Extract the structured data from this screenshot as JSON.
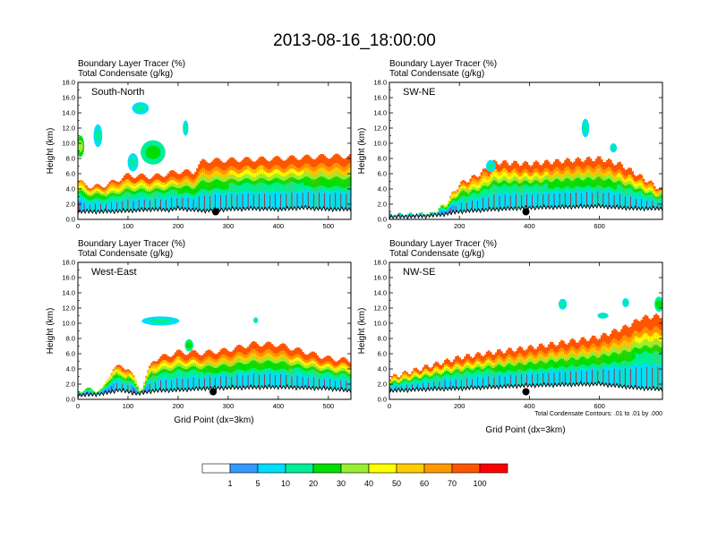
{
  "chart_data": {
    "type": "heatmap",
    "title": "2013-08-16_18:00:00",
    "subtitles": [
      "Boundary Layer Tracer   (%)",
      "Total Condensate   (g/kg)"
    ],
    "ylabel": "Height (km)",
    "xlabel": "Grid Point (dx=3km)",
    "contour_note": "Total Condensate Contours: .01 to .01 by .000",
    "y_ticks": [
      "0.0",
      "2.0",
      "4.0",
      "6.0",
      "8.0",
      "10.0",
      "12.0",
      "14.0",
      "16.0",
      "18.0"
    ],
    "ylim": [
      0,
      18
    ],
    "legend": {
      "labels": [
        "1",
        "5",
        "10",
        "20",
        "30",
        "40",
        "50",
        "60",
        "70",
        "100"
      ],
      "colors": [
        "#ffffff",
        "#3399ff",
        "#00ddff",
        "#00ee99",
        "#00dd00",
        "#99ee33",
        "#ffff00",
        "#ffcc00",
        "#ff9900",
        "#ff5500",
        "#ff0000"
      ]
    },
    "panels": [
      {
        "label": "South-North",
        "xlim": [
          0,
          545
        ],
        "x_ticks": [
          "0",
          "100",
          "200",
          "300",
          "400",
          "500"
        ],
        "x_tick_values": [
          0,
          100,
          200,
          300,
          400,
          500
        ],
        "marker_x": 275,
        "marker_y": 1.0,
        "terrain": [
          [
            0,
            1.0
          ],
          [
            50,
            1.0
          ],
          [
            100,
            1.1
          ],
          [
            150,
            1.3
          ],
          [
            180,
            1.2
          ],
          [
            200,
            1.4
          ],
          [
            250,
            1.1
          ],
          [
            300,
            1.3
          ],
          [
            350,
            1.4
          ],
          [
            400,
            1.3
          ],
          [
            450,
            1.5
          ],
          [
            500,
            1.3
          ],
          [
            545,
            1.3
          ]
        ],
        "top": [
          [
            0,
            5.0
          ],
          [
            30,
            4.2
          ],
          [
            60,
            4.6
          ],
          [
            100,
            5.8
          ],
          [
            150,
            5.6
          ],
          [
            200,
            6.3
          ],
          [
            230,
            6.2
          ],
          [
            250,
            7.7
          ],
          [
            300,
            7.8
          ],
          [
            400,
            8.0
          ],
          [
            500,
            8.3
          ],
          [
            545,
            8.3
          ]
        ],
        "base_pct": [
          [
            0,
            70
          ],
          [
            50,
            78
          ],
          [
            100,
            90
          ],
          [
            150,
            88
          ],
          [
            200,
            100
          ],
          [
            300,
            100
          ],
          [
            350,
            92
          ],
          [
            450,
            100
          ],
          [
            545,
            100
          ]
        ],
        "clouds": [
          {
            "x": 5,
            "y": 9.6,
            "rx": 5,
            "ry": 1.4,
            "v": 20
          },
          {
            "x": 40,
            "y": 11.0,
            "rx": 6,
            "ry": 1.5,
            "v": 5
          },
          {
            "x": 125,
            "y": 14.6,
            "rx": 14,
            "ry": 0.8,
            "v": 5
          },
          {
            "x": 150,
            "y": 8.8,
            "rx": 22,
            "ry": 1.6,
            "v": 10
          },
          {
            "x": 110,
            "y": 7.5,
            "rx": 8,
            "ry": 1.2,
            "v": 5
          },
          {
            "x": 215,
            "y": 12.0,
            "rx": 3,
            "ry": 1.0,
            "v": 5
          }
        ]
      },
      {
        "label": "SW-NE",
        "xlim": [
          0,
          780
        ],
        "x_ticks": [
          "0",
          "200",
          "400",
          "600"
        ],
        "x_tick_values": [
          0,
          200,
          400,
          600
        ],
        "marker_x": 390,
        "marker_y": 1.0,
        "terrain": [
          [
            0,
            0.3
          ],
          [
            100,
            0.4
          ],
          [
            150,
            0.6
          ],
          [
            200,
            1.0
          ],
          [
            300,
            1.3
          ],
          [
            400,
            1.5
          ],
          [
            500,
            1.6
          ],
          [
            600,
            1.7
          ],
          [
            700,
            1.4
          ],
          [
            780,
            1.4
          ]
        ],
        "top": [
          [
            0,
            0.5
          ],
          [
            120,
            0.6
          ],
          [
            160,
            2.0
          ],
          [
            200,
            4.6
          ],
          [
            260,
            6.0
          ],
          [
            300,
            7.5
          ],
          [
            400,
            7.3
          ],
          [
            500,
            7.7
          ],
          [
            600,
            8.0
          ],
          [
            660,
            7.2
          ],
          [
            700,
            6.1
          ],
          [
            780,
            3.8
          ]
        ],
        "base_pct": [
          [
            0,
            20
          ],
          [
            140,
            30
          ],
          [
            180,
            70
          ],
          [
            250,
            85
          ],
          [
            330,
            92
          ],
          [
            450,
            100
          ],
          [
            650,
            100
          ],
          [
            700,
            90
          ],
          [
            780,
            78
          ]
        ],
        "clouds": [
          {
            "x": 560,
            "y": 12.0,
            "rx": 7,
            "ry": 1.2,
            "v": 5
          },
          {
            "x": 290,
            "y": 7.0,
            "rx": 10,
            "ry": 0.8,
            "v": 5
          },
          {
            "x": 640,
            "y": 9.4,
            "rx": 6,
            "ry": 0.6,
            "v": 5
          }
        ]
      },
      {
        "label": "West-East",
        "xlim": [
          0,
          545
        ],
        "x_ticks": [
          "0",
          "100",
          "200",
          "300",
          "400",
          "500"
        ],
        "x_tick_values": [
          0,
          100,
          200,
          300,
          400,
          500
        ],
        "marker_x": 270,
        "marker_y": 1.0,
        "terrain": [
          [
            0,
            0.5
          ],
          [
            50,
            0.7
          ],
          [
            80,
            1.2
          ],
          [
            100,
            1.0
          ],
          [
            120,
            0.7
          ],
          [
            150,
            1.1
          ],
          [
            200,
            1.2
          ],
          [
            250,
            1.4
          ],
          [
            300,
            1.5
          ],
          [
            400,
            1.6
          ],
          [
            500,
            1.4
          ],
          [
            545,
            1.1
          ]
        ],
        "top": [
          [
            0,
            1.2
          ],
          [
            50,
            1.3
          ],
          [
            70,
            4.2
          ],
          [
            100,
            4.2
          ],
          [
            125,
            1.0
          ],
          [
            150,
            5.2
          ],
          [
            200,
            6.2
          ],
          [
            250,
            6.1
          ],
          [
            300,
            6.5
          ],
          [
            350,
            7.3
          ],
          [
            400,
            7.2
          ],
          [
            450,
            6.3
          ],
          [
            500,
            5.4
          ],
          [
            545,
            5.1
          ]
        ],
        "base_pct": [
          [
            0,
            25
          ],
          [
            60,
            55
          ],
          [
            90,
            90
          ],
          [
            120,
            55
          ],
          [
            160,
            88
          ],
          [
            250,
            100
          ],
          [
            420,
            100
          ],
          [
            545,
            92
          ]
        ],
        "clouds": [
          {
            "x": 165,
            "y": 10.3,
            "rx": 35,
            "ry": 0.6,
            "v": 5
          },
          {
            "x": 355,
            "y": 10.4,
            "rx": 2,
            "ry": 0.4,
            "v": 5
          },
          {
            "x": 222,
            "y": 7.1,
            "rx": 6,
            "ry": 0.8,
            "v": 10
          }
        ]
      },
      {
        "label": "NW-SE",
        "xlim": [
          0,
          780
        ],
        "x_ticks": [
          "0",
          "200",
          "400",
          "600"
        ],
        "x_tick_values": [
          0,
          200,
          400,
          600
        ],
        "marker_x": 390,
        "marker_y": 1.0,
        "terrain": [
          [
            0,
            1.1
          ],
          [
            100,
            1.3
          ],
          [
            200,
            1.4
          ],
          [
            300,
            1.6
          ],
          [
            400,
            1.8
          ],
          [
            500,
            1.9
          ],
          [
            600,
            2.0
          ],
          [
            700,
            1.5
          ],
          [
            780,
            1.3
          ]
        ],
        "top": [
          [
            0,
            2.8
          ],
          [
            100,
            4.2
          ],
          [
            200,
            5.5
          ],
          [
            300,
            6.2
          ],
          [
            400,
            6.8
          ],
          [
            500,
            7.5
          ],
          [
            600,
            8.2
          ],
          [
            680,
            9.6
          ],
          [
            720,
            10.7
          ],
          [
            780,
            11.0
          ]
        ],
        "base_pct": [
          [
            0,
            80
          ],
          [
            100,
            90
          ],
          [
            200,
            96
          ],
          [
            300,
            100
          ],
          [
            700,
            100
          ],
          [
            780,
            96
          ]
        ],
        "clouds": [
          {
            "x": 495,
            "y": 12.5,
            "rx": 8,
            "ry": 0.7,
            "v": 5
          },
          {
            "x": 675,
            "y": 12.7,
            "rx": 6,
            "ry": 0.6,
            "v": 5
          },
          {
            "x": 770,
            "y": 12.5,
            "rx": 9,
            "ry": 1.0,
            "v": 10
          },
          {
            "x": 610,
            "y": 11.0,
            "rx": 12,
            "ry": 0.4,
            "v": 5
          }
        ]
      }
    ]
  }
}
